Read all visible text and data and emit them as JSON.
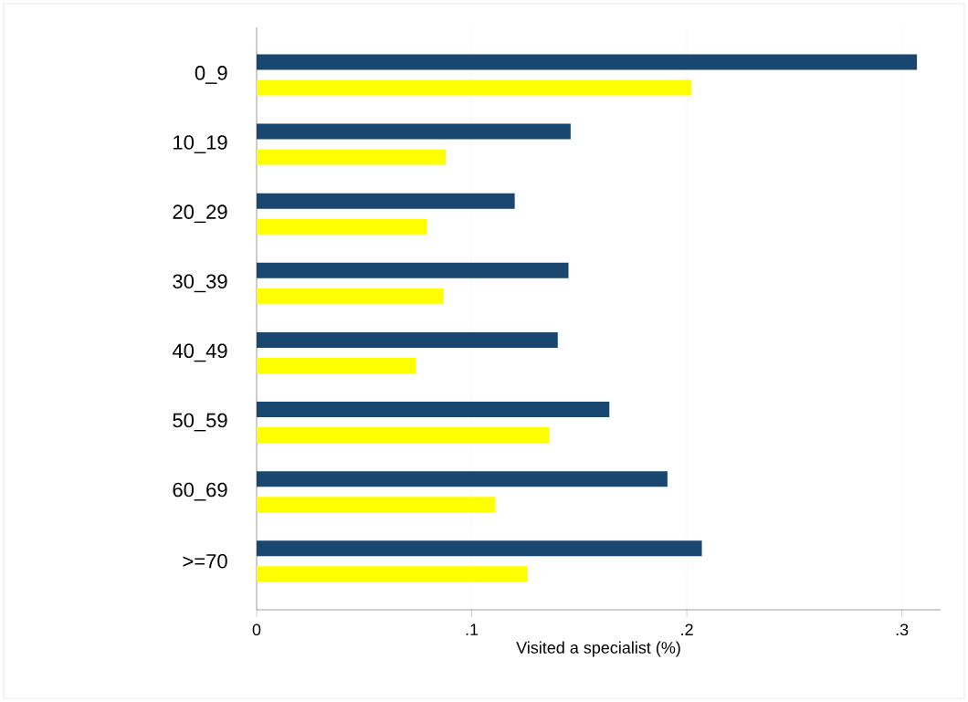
{
  "chart_data": {
    "type": "bar",
    "orientation": "horizontal",
    "xlabel": "Visited a specialist (%)",
    "categories": [
      "0_9",
      "10_19",
      "20_29",
      "30_39",
      "40_49",
      "50_59",
      "60_69",
      ">=70"
    ],
    "series": [
      {
        "color": "#1a476f",
        "values": [
          0.307,
          0.146,
          0.12,
          0.145,
          0.14,
          0.164,
          0.191,
          0.207
        ]
      },
      {
        "color": "#ffff00",
        "values": [
          0.202,
          0.088,
          0.079,
          0.087,
          0.074,
          0.136,
          0.111,
          0.126
        ]
      }
    ],
    "xlim": [
      0,
      0.318
    ],
    "xticks": [
      0,
      {
        "value": 0.1,
        "label": ".1"
      },
      {
        "value": 0.2,
        "label": ".2"
      },
      {
        "value": 0.3,
        "label": ".3"
      }
    ],
    "grid": "x"
  }
}
